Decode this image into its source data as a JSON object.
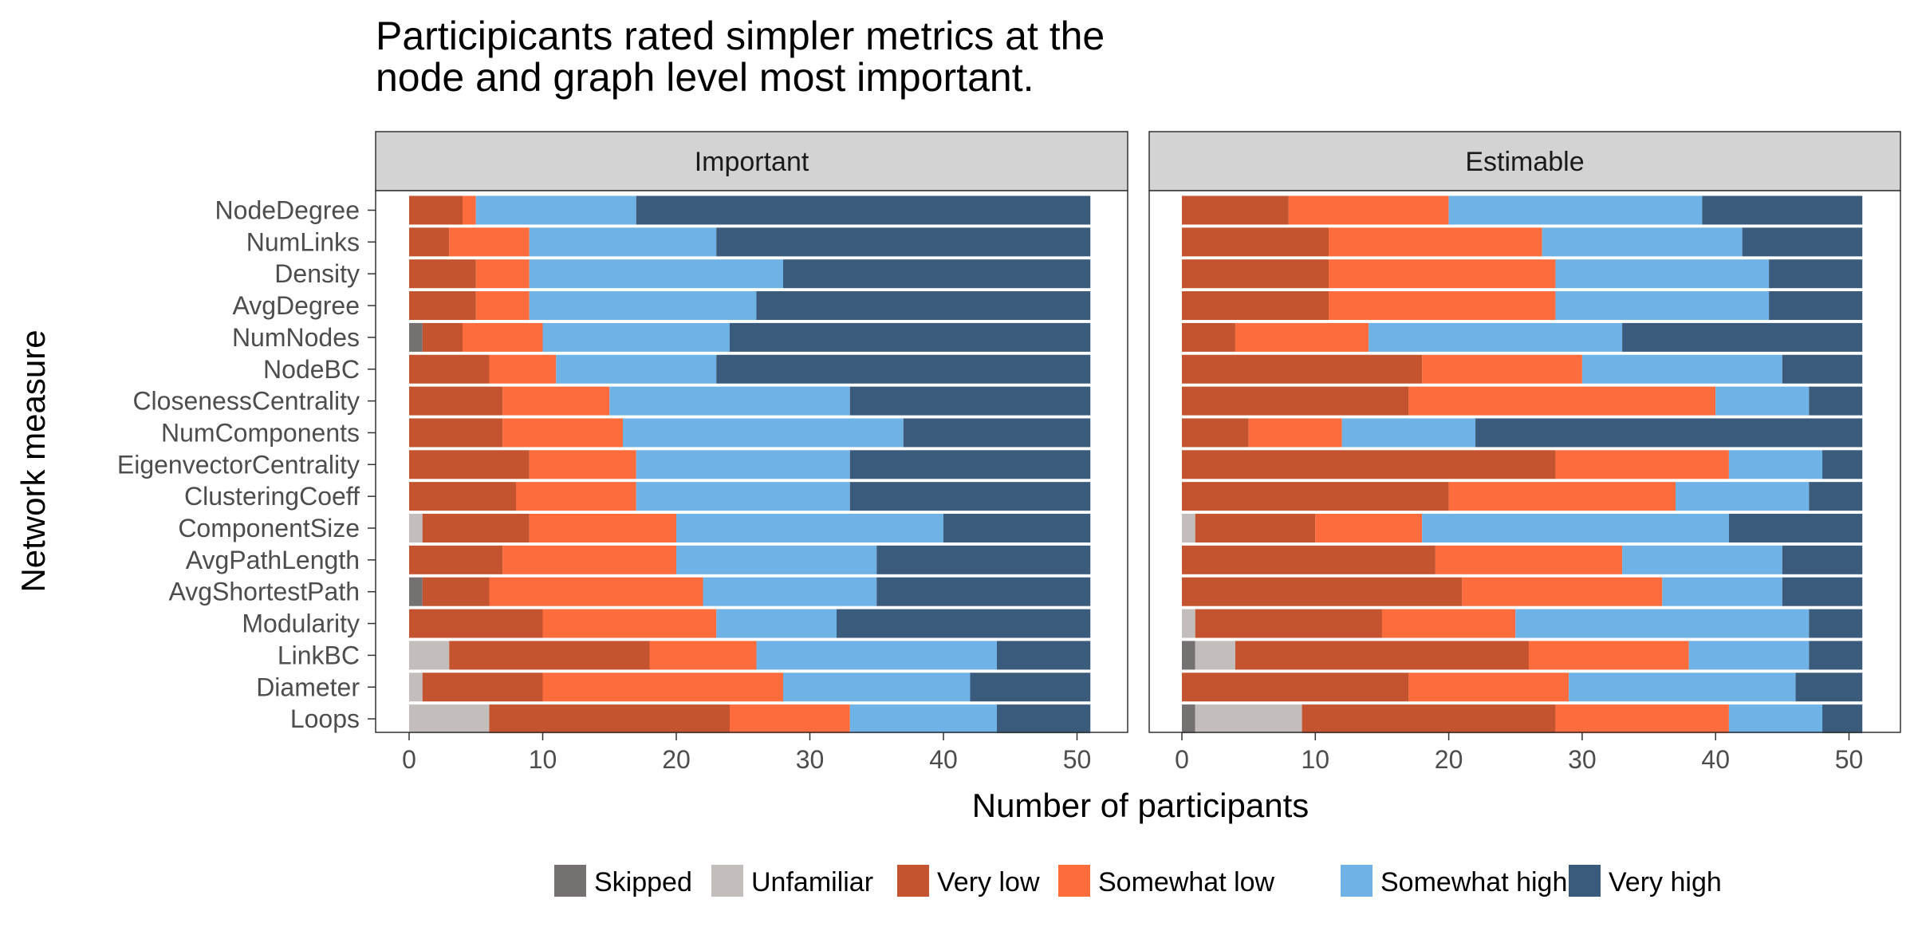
{
  "chart_data": {
    "type": "bar",
    "orientation": "horizontal",
    "stacked": true,
    "title_lines": [
      "Participicants rated simpler metrics at the",
      "node and graph level most important."
    ],
    "xlabel": "Number of participants",
    "ylabel": "Network measure",
    "xlim": [
      0,
      51
    ],
    "x_ticks": [
      "0",
      "10",
      "20",
      "30",
      "40",
      "50"
    ],
    "legend_position": "bottom",
    "categories": [
      "NodeDegree",
      "NumLinks",
      "Density",
      "AvgDegree",
      "NumNodes",
      "NodeBC",
      "ClosenessCentrality",
      "NumComponents",
      "EigenvectorCentrality",
      "ClusteringCoeff",
      "ComponentSize",
      "AvgPathLength",
      "AvgShortestPath",
      "Modularity",
      "LinkBC",
      "Diameter",
      "Loops"
    ],
    "series": [
      {
        "name": "Skipped",
        "color": "#767171"
      },
      {
        "name": "Unfamiliar",
        "color": "#c3bebc"
      },
      {
        "name": "Very low",
        "color": "#c4532f"
      },
      {
        "name": "Somewhat low",
        "color": "#fd6c3c"
      },
      {
        "name": "Somewhat high",
        "color": "#6fb2e6"
      },
      {
        "name": "Very high",
        "color": "#3b5b7d"
      }
    ],
    "panels": [
      {
        "title": "Important",
        "values": [
          [
            0,
            0,
            4,
            1,
            12,
            34
          ],
          [
            0,
            0,
            3,
            6,
            14,
            28
          ],
          [
            0,
            0,
            5,
            4,
            19,
            23
          ],
          [
            0,
            0,
            5,
            4,
            17,
            25
          ],
          [
            1,
            0,
            3,
            6,
            14,
            27
          ],
          [
            0,
            0,
            6,
            5,
            12,
            28
          ],
          [
            0,
            0,
            7,
            8,
            18,
            18
          ],
          [
            0,
            0,
            7,
            9,
            21,
            14
          ],
          [
            0,
            0,
            9,
            8,
            16,
            18
          ],
          [
            0,
            0,
            8,
            9,
            16,
            18
          ],
          [
            0,
            1,
            8,
            11,
            20,
            11
          ],
          [
            0,
            0,
            7,
            13,
            15,
            16
          ],
          [
            1,
            0,
            5,
            16,
            13,
            16
          ],
          [
            0,
            0,
            10,
            13,
            9,
            19
          ],
          [
            0,
            3,
            15,
            8,
            18,
            7
          ],
          [
            0,
            1,
            9,
            18,
            14,
            9
          ],
          [
            0,
            6,
            18,
            9,
            11,
            7
          ]
        ]
      },
      {
        "title": "Estimable",
        "values": [
          [
            0,
            0,
            8,
            12,
            19,
            12
          ],
          [
            0,
            0,
            11,
            16,
            15,
            9
          ],
          [
            0,
            0,
            11,
            17,
            16,
            7
          ],
          [
            0,
            0,
            11,
            17,
            16,
            7
          ],
          [
            0,
            0,
            4,
            10,
            19,
            18
          ],
          [
            0,
            0,
            18,
            12,
            15,
            6
          ],
          [
            0,
            0,
            17,
            23,
            7,
            4
          ],
          [
            0,
            0,
            5,
            7,
            10,
            29
          ],
          [
            0,
            0,
            28,
            13,
            7,
            3
          ],
          [
            0,
            0,
            20,
            17,
            10,
            4
          ],
          [
            0,
            1,
            9,
            8,
            23,
            10
          ],
          [
            0,
            0,
            19,
            14,
            12,
            6
          ],
          [
            0,
            0,
            21,
            15,
            9,
            6
          ],
          [
            0,
            1,
            14,
            10,
            22,
            4
          ],
          [
            1,
            3,
            22,
            12,
            9,
            4
          ],
          [
            0,
            0,
            17,
            12,
            17,
            5
          ],
          [
            1,
            8,
            19,
            13,
            7,
            3
          ]
        ]
      }
    ]
  }
}
